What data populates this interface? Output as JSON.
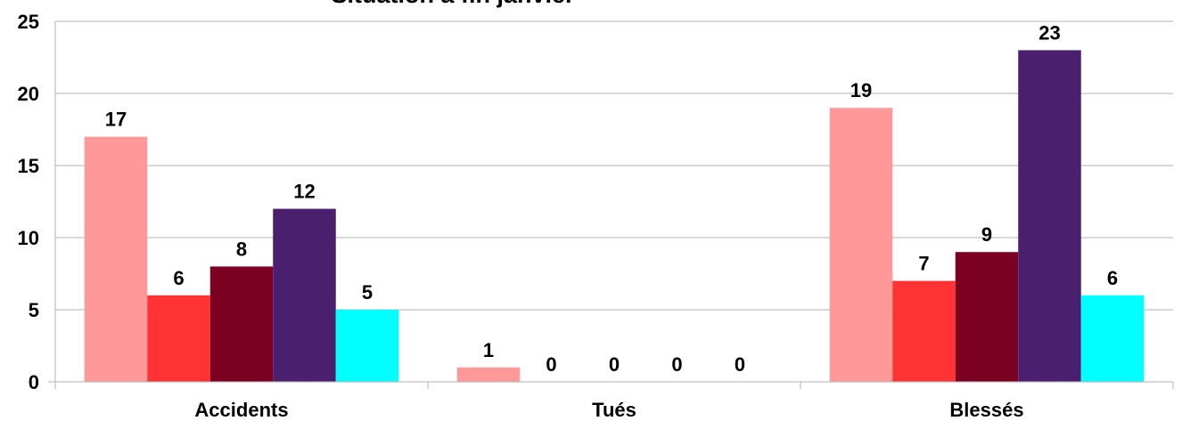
{
  "chart_data": {
    "type": "bar",
    "title": "Situation à fin janvier",
    "categories": [
      "Accidents",
      "Tués",
      "Blessés"
    ],
    "series": [
      {
        "color": "#ff9999",
        "values": [
          17,
          1,
          19
        ]
      },
      {
        "color": "#ff3333",
        "values": [
          6,
          0,
          7
        ]
      },
      {
        "color": "#7b0021",
        "values": [
          8,
          0,
          9
        ]
      },
      {
        "color": "#4a1f6e",
        "values": [
          12,
          0,
          23
        ]
      },
      {
        "color": "#00ffff",
        "values": [
          5,
          0,
          6
        ]
      }
    ],
    "ylim": [
      0,
      25
    ],
    "yticks": [
      0,
      5,
      10,
      15,
      20,
      25
    ],
    "grid": true,
    "data_labels": true
  }
}
